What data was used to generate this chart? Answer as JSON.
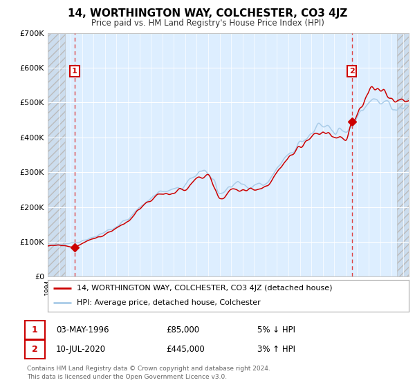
{
  "title": "14, WORTHINGTON WAY, COLCHESTER, CO3 4JZ",
  "subtitle": "Price paid vs. HM Land Registry's House Price Index (HPI)",
  "legend_line1": "14, WORTHINGTON WAY, COLCHESTER, CO3 4JZ (detached house)",
  "legend_line2": "HPI: Average price, detached house, Colchester",
  "sale1_date": "03-MAY-1996",
  "sale1_price": 85000,
  "sale1_label": "5% ↓ HPI",
  "sale2_date": "10-JUL-2020",
  "sale2_price": 445000,
  "sale2_label": "3% ↑ HPI",
  "sale1_year": 1996.35,
  "sale2_year": 2020.53,
  "hpi_color": "#aacce8",
  "price_color": "#cc0000",
  "bg_color": "#ddeeff",
  "outer_bg": "#ffffff",
  "dashed_line_color": "#dd4444",
  "annotation_box_color": "#cc0000",
  "footer": "Contains HM Land Registry data © Crown copyright and database right 2024.\nThis data is licensed under the Open Government Licence v3.0.",
  "ylim": [
    0,
    700000
  ],
  "xlim_start": 1994.0,
  "xlim_end": 2025.5,
  "hatch_left_end": 1995.5,
  "hatch_right_start": 2024.5
}
